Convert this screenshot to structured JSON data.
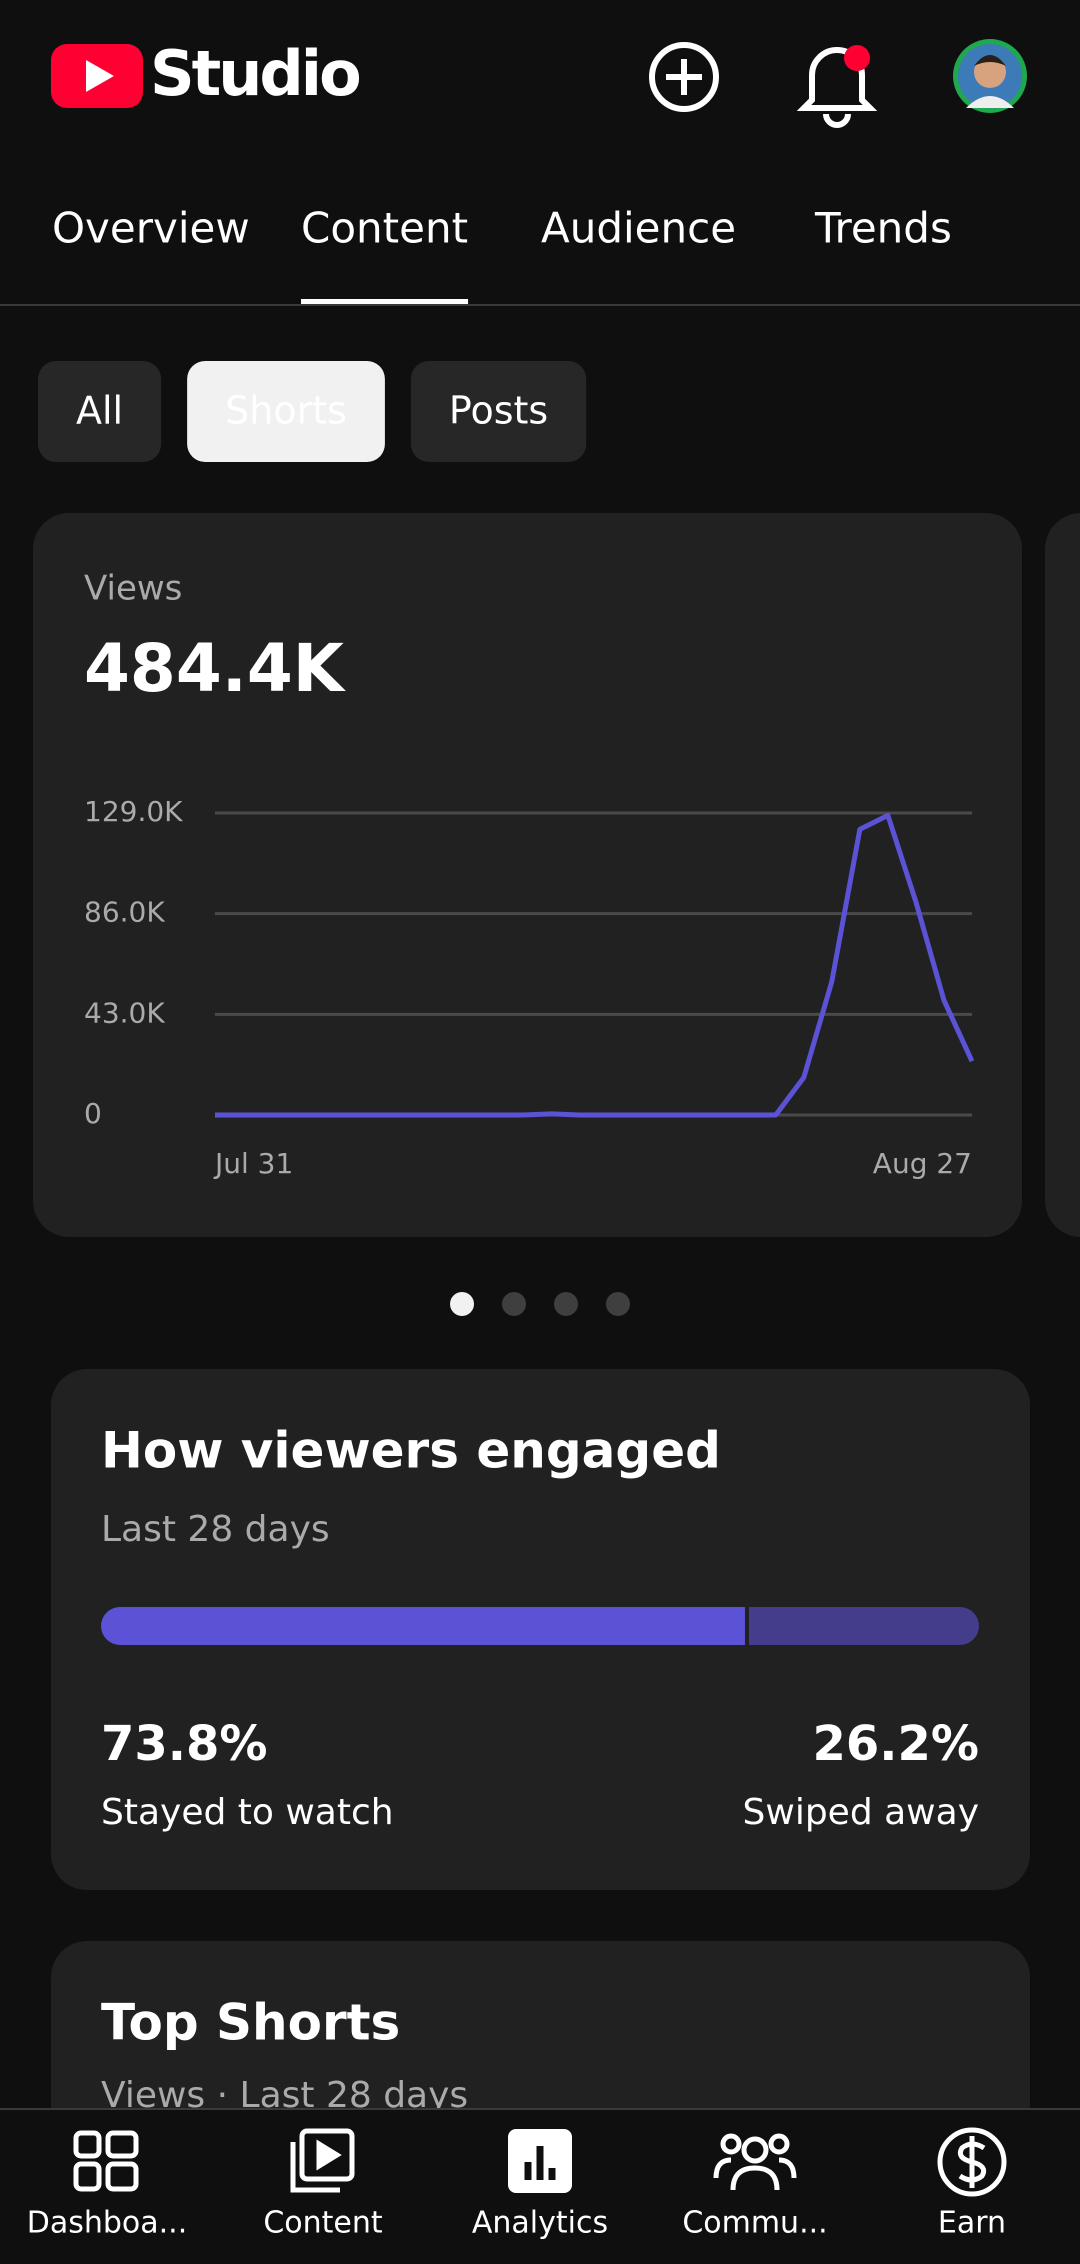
{
  "header": {
    "title": "Studio"
  },
  "tabs": [
    "Overview",
    "Content",
    "Audience",
    "Trends"
  ],
  "filters": [
    "All",
    "Shorts",
    "Posts"
  ],
  "chart_data": {
    "type": "line",
    "title": "Views",
    "subtitle": "484.4K",
    "categories": [
      "Jul 31",
      null,
      null,
      null,
      null,
      null,
      null,
      null,
      null,
      null,
      null,
      null,
      null,
      null,
      null,
      null,
      null,
      null,
      null,
      null,
      null,
      null,
      null,
      null,
      null,
      null,
      null,
      "Aug 27"
    ],
    "series": [
      {
        "name": "Views",
        "color": "#5b52d6",
        "values": [
          0,
          0,
          0,
          0,
          0,
          0,
          0,
          0,
          0,
          0,
          0,
          0,
          500,
          0,
          0,
          0,
          0,
          0,
          0,
          0,
          0,
          16000,
          57000,
          122000,
          128000,
          91000,
          49000,
          23000
        ]
      }
    ],
    "ylim": [
      0,
      129000
    ],
    "yticks": [
      0,
      {
        "value": 43000,
        "label": "43.0K"
      },
      {
        "value": 86000,
        "label": "86.0K"
      },
      {
        "value": 129000,
        "label": "129.0K"
      }
    ],
    "grid": true
  },
  "engagement": {
    "title": "How viewers engaged",
    "subtitle": "Last 28 days",
    "segments": [
      {
        "name": "Stayed to watch",
        "color": "#5b52d6",
        "value": 73.8,
        "value_label": "73.8%"
      },
      {
        "name": "Swiped away",
        "color": "#433d8c",
        "value": 26.2,
        "value_label": "26.2%"
      }
    ]
  },
  "top_shorts": {
    "title": "Top Shorts",
    "subtitle": "Views · Last 28 days"
  },
  "nav": [
    "Dashboa...",
    "Content",
    "Analytics",
    "Commu...",
    "Earn"
  ]
}
